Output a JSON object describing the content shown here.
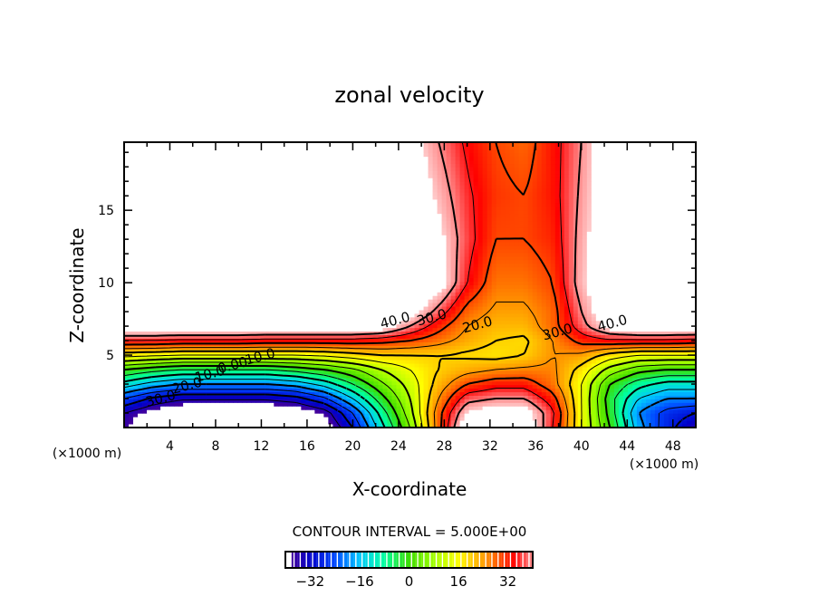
{
  "chart_data": {
    "type": "heatmap",
    "title": "zonal velocity",
    "xlabel": "X-coordinate",
    "ylabel": "Z-coordinate",
    "x_unit_label": "(×1000 m)",
    "y_unit_label": "(×1000 m)",
    "xlim": [
      0,
      50
    ],
    "ylim": [
      0,
      19.7
    ],
    "xticks": [
      4,
      8,
      12,
      16,
      20,
      24,
      28,
      32,
      36,
      40,
      44,
      48
    ],
    "yticks": [
      5,
      10,
      15
    ],
    "contour_interval_text": "CONTOUR INTERVAL = 5.000E+00",
    "contour_levels": [
      -35,
      -30,
      -25,
      -20,
      -15,
      -10,
      -5,
      0,
      5,
      10,
      15,
      20,
      25,
      30,
      35,
      40
    ],
    "colorbar": {
      "range": [
        -40,
        40
      ],
      "ticks": [
        -32,
        -16,
        0,
        16,
        32
      ],
      "tick_labels": [
        "−32",
        "−16",
        "0",
        "16",
        "32"
      ]
    },
    "contour_labels": [
      {
        "text": "30.0",
        "x": 3.3,
        "z": 1.7
      },
      {
        "text": "20.0",
        "x": 5.6,
        "z": 2.6
      },
      {
        "text": "10.0",
        "x": 7.6,
        "z": 3.4
      },
      {
        "text": "0.00",
        "x": 9.6,
        "z": 4.0
      },
      {
        "text": "10.0",
        "x": 12.0,
        "z": 4.6
      },
      {
        "text": "40.0",
        "x": 23.8,
        "z": 7.1
      },
      {
        "text": "30.0",
        "x": 27.0,
        "z": 7.3
      },
      {
        "text": "20.0",
        "x": 31.0,
        "z": 6.8
      },
      {
        "text": "30.0",
        "x": 38.0,
        "z": 6.3
      },
      {
        "text": "40.0",
        "x": 42.8,
        "z": 6.9
      }
    ],
    "grid_x": [
      0,
      2.5,
      5,
      7.5,
      10,
      12.5,
      15,
      17.5,
      20,
      22.5,
      25,
      27.5,
      30,
      32.5,
      35,
      37.5,
      40,
      42.5,
      45,
      47.5,
      50
    ],
    "grid_z": [
      0,
      1,
      2,
      3,
      4,
      5,
      6,
      7,
      8,
      10,
      13,
      16,
      19.7
    ],
    "values": [
      [
        -37,
        -45,
        -50,
        -50,
        -50,
        -50,
        -48,
        -42,
        -30,
        -12,
        5,
        28,
        50,
        50,
        50,
        35,
        15,
        0,
        -18,
        -28,
        -35
      ],
      [
        -35,
        -40,
        -44,
        -46,
        -46,
        -45,
        -43,
        -38,
        -25,
        -8,
        8,
        28,
        45,
        48,
        48,
        36,
        15,
        -2,
        -20,
        -27,
        -30
      ],
      [
        -25,
        -31,
        -34,
        -34,
        -34,
        -34,
        -32,
        -26,
        -15,
        -2,
        10,
        25,
        38,
        40,
        40,
        32,
        15,
        -3,
        -15,
        -20,
        -20
      ],
      [
        -12,
        -17,
        -20,
        -20,
        -20,
        -20,
        -18,
        -13,
        -5,
        4,
        12,
        22,
        30,
        33,
        33,
        27,
        15,
        0,
        -8,
        -12,
        -12
      ],
      [
        0,
        -3,
        -5,
        -5,
        -5,
        -5,
        -3,
        0,
        4,
        10,
        15,
        20,
        23,
        25,
        26,
        26,
        18,
        8,
        2,
        0,
        0
      ],
      [
        17,
        16,
        15,
        15,
        15,
        15,
        15,
        16,
        18,
        20,
        20,
        20,
        19,
        18,
        20,
        25,
        24,
        18,
        15,
        15,
        15
      ],
      [
        35,
        35,
        34,
        34,
        34,
        33,
        33,
        33,
        33,
        32,
        30,
        27,
        23,
        20,
        19,
        25,
        32,
        34,
        34,
        34,
        33
      ],
      [
        50,
        50,
        50,
        50,
        50,
        50,
        50,
        50,
        50,
        48,
        40,
        32,
        25,
        22,
        22,
        28,
        38,
        47,
        50,
        50,
        50
      ],
      [
        50,
        50,
        50,
        50,
        50,
        50,
        50,
        50,
        50,
        50,
        48,
        38,
        28,
        24,
        24,
        28,
        40,
        50,
        50,
        50,
        50
      ],
      [
        50,
        50,
        50,
        50,
        50,
        50,
        50,
        50,
        50,
        50,
        50,
        48,
        35,
        27,
        27,
        30,
        43,
        50,
        50,
        50,
        50
      ],
      [
        50,
        50,
        50,
        50,
        50,
        50,
        50,
        50,
        50,
        50,
        50,
        46,
        37,
        30,
        30,
        32,
        42,
        50,
        50,
        50,
        50
      ],
      [
        50,
        50,
        50,
        50,
        50,
        50,
        50,
        50,
        50,
        50,
        50,
        43,
        36,
        31,
        30,
        33,
        41,
        50,
        50,
        50,
        50
      ],
      [
        50,
        50,
        50,
        50,
        50,
        50,
        50,
        50,
        50,
        50,
        47,
        40,
        34,
        30,
        28,
        33,
        40,
        50,
        50,
        50,
        50
      ]
    ]
  }
}
